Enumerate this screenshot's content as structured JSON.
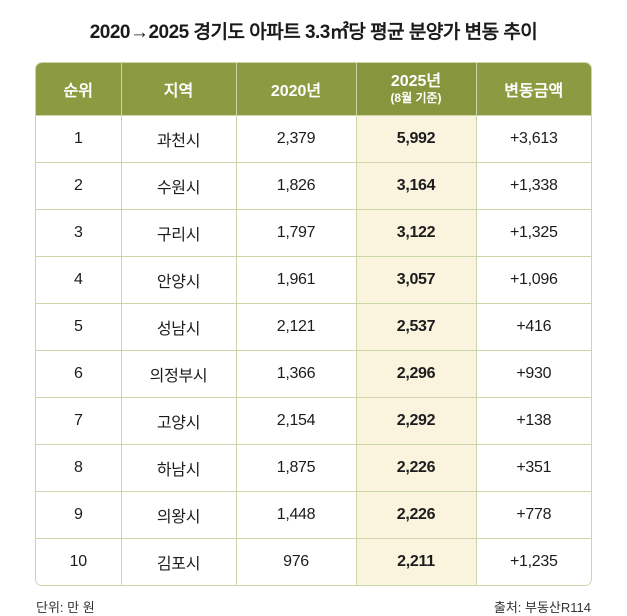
{
  "title": "2020→2025 경기도 아파트 3.3㎡당 평균 분양가 변동 추이",
  "colors": {
    "header_bg": "#8c9b41",
    "header_2025_bg": "#87963d",
    "header_text": "#ffffff",
    "highlight_bg": "#faf4de",
    "border": "#ccd6ab"
  },
  "table": {
    "headers": {
      "rank": "순위",
      "region": "지역",
      "y2020": "2020년",
      "y2025": "2025년",
      "y2025_sub": "(8월 기준)",
      "change": "변동금액"
    },
    "rows": [
      {
        "rank": "1",
        "region": "과천시",
        "y2020": "2,379",
        "y2025": "5,992",
        "change": "+3,613"
      },
      {
        "rank": "2",
        "region": "수원시",
        "y2020": "1,826",
        "y2025": "3,164",
        "change": "+1,338"
      },
      {
        "rank": "3",
        "region": "구리시",
        "y2020": "1,797",
        "y2025": "3,122",
        "change": "+1,325"
      },
      {
        "rank": "4",
        "region": "안양시",
        "y2020": "1,961",
        "y2025": "3,057",
        "change": "+1,096"
      },
      {
        "rank": "5",
        "region": "성남시",
        "y2020": "2,121",
        "y2025": "2,537",
        "change": "+416"
      },
      {
        "rank": "6",
        "region": "의정부시",
        "y2020": "1,366",
        "y2025": "2,296",
        "change": "+930"
      },
      {
        "rank": "7",
        "region": "고양시",
        "y2020": "2,154",
        "y2025": "2,292",
        "change": "+138"
      },
      {
        "rank": "8",
        "region": "하남시",
        "y2020": "1,875",
        "y2025": "2,226",
        "change": "+351"
      },
      {
        "rank": "9",
        "region": "의왕시",
        "y2020": "1,448",
        "y2025": "2,226",
        "change": "+778"
      },
      {
        "rank": "10",
        "region": "김포시",
        "y2020": "976",
        "y2025": "2,211",
        "change": "+1,235"
      }
    ]
  },
  "footer": {
    "unit": "단위: 만 원",
    "source": "출처: 부동산R114"
  },
  "chart_data": {
    "type": "table",
    "title": "2020→2025 경기도 아파트 3.3㎡당 평균 분양가 변동 추이",
    "columns": [
      "순위",
      "지역",
      "2020년",
      "2025년(8월 기준)",
      "변동금액"
    ],
    "unit": "만 원",
    "source": "부동산R114",
    "rows": [
      [
        1,
        "과천시",
        2379,
        5992,
        3613
      ],
      [
        2,
        "수원시",
        1826,
        3164,
        1338
      ],
      [
        3,
        "구리시",
        1797,
        3122,
        1325
      ],
      [
        4,
        "안양시",
        1961,
        3057,
        1096
      ],
      [
        5,
        "성남시",
        2121,
        2537,
        416
      ],
      [
        6,
        "의정부시",
        1366,
        2296,
        930
      ],
      [
        7,
        "고양시",
        2154,
        2292,
        138
      ],
      [
        8,
        "하남시",
        1875,
        2226,
        351
      ],
      [
        9,
        "의왕시",
        1448,
        2226,
        778
      ],
      [
        10,
        "김포시",
        976,
        2211,
        1235
      ]
    ]
  }
}
